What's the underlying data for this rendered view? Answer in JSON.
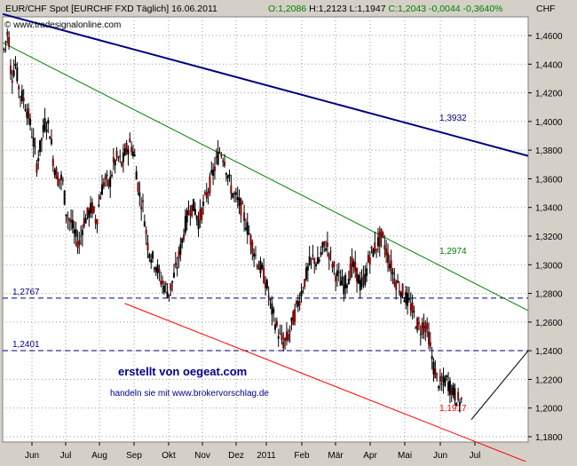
{
  "header": {
    "symbol": "EUR/CHF Spot [EURCHF FXD  Täglich] 16.06.2011",
    "open": "O:1,2086",
    "high": "H:1,2123",
    "low": "L:1,1947",
    "close": "C:1,2043",
    "change": "-0,0044",
    "change_pct": "-0,3640%",
    "copyright": "© www.tradesignalonline.com",
    "currency": "CHF"
  },
  "annotations": {
    "credit": "erstellt von oegeat.com",
    "note": "handeln sie mit www.brokervorschlag.de"
  },
  "chart_data": {
    "type": "candlestick",
    "ylim": [
      1.17,
      1.475
    ],
    "y_ticks": [
      "1,4600",
      "1,4400",
      "1,4200",
      "1,4000",
      "1,3800",
      "1,3600",
      "1,3400",
      "1,3200",
      "1,3000",
      "1,2800",
      "1,2600",
      "1,2400",
      "1,2200",
      "1,2000",
      "1,1800"
    ],
    "x_ticks": [
      "Jun",
      "Jul",
      "Aug",
      "Sep",
      "Okt",
      "Nov",
      "Dez",
      "2011",
      "Feb",
      "Mär",
      "Apr",
      "Mai",
      "Jun",
      "Jul"
    ],
    "grid": true,
    "price_path": [
      [
        1,
        1.45
      ],
      [
        4,
        1.465
      ],
      [
        6,
        1.43
      ],
      [
        9,
        1.44
      ],
      [
        12,
        1.42
      ],
      [
        15,
        1.415
      ],
      [
        18,
        1.405
      ],
      [
        21,
        1.39
      ],
      [
        24,
        1.37
      ],
      [
        27,
        1.385
      ],
      [
        30,
        1.4
      ],
      [
        33,
        1.395
      ],
      [
        36,
        1.37
      ],
      [
        39,
        1.36
      ],
      [
        42,
        1.36
      ],
      [
        45,
        1.335
      ],
      [
        48,
        1.33
      ],
      [
        51,
        1.32
      ],
      [
        54,
        1.315
      ],
      [
        57,
        1.33
      ],
      [
        60,
        1.335
      ],
      [
        63,
        1.34
      ],
      [
        66,
        1.33
      ],
      [
        69,
        1.35
      ],
      [
        72,
        1.36
      ],
      [
        75,
        1.355
      ],
      [
        78,
        1.37
      ],
      [
        81,
        1.375
      ],
      [
        84,
        1.37
      ],
      [
        87,
        1.38
      ],
      [
        90,
        1.385
      ],
      [
        93,
        1.375
      ],
      [
        96,
        1.35
      ],
      [
        99,
        1.34
      ],
      [
        102,
        1.315
      ],
      [
        105,
        1.305
      ],
      [
        108,
        1.3
      ],
      [
        111,
        1.29
      ],
      [
        114,
        1.285
      ],
      [
        117,
        1.28
      ],
      [
        120,
        1.29
      ],
      [
        123,
        1.3
      ],
      [
        126,
        1.315
      ],
      [
        129,
        1.33
      ],
      [
        132,
        1.34
      ],
      [
        135,
        1.34
      ],
      [
        138,
        1.33
      ],
      [
        141,
        1.34
      ],
      [
        144,
        1.35
      ],
      [
        147,
        1.36
      ],
      [
        150,
        1.37
      ],
      [
        153,
        1.38
      ],
      [
        156,
        1.375
      ],
      [
        159,
        1.36
      ],
      [
        162,
        1.35
      ],
      [
        165,
        1.345
      ],
      [
        168,
        1.34
      ],
      [
        171,
        1.33
      ],
      [
        174,
        1.32
      ],
      [
        177,
        1.31
      ],
      [
        180,
        1.3
      ],
      [
        183,
        1.295
      ],
      [
        186,
        1.285
      ],
      [
        189,
        1.27
      ],
      [
        192,
        1.26
      ],
      [
        195,
        1.25
      ],
      [
        198,
        1.245
      ],
      [
        201,
        1.25
      ],
      [
        204,
        1.26
      ],
      [
        207,
        1.27
      ],
      [
        210,
        1.28
      ],
      [
        213,
        1.29
      ],
      [
        216,
        1.3
      ],
      [
        219,
        1.305
      ],
      [
        222,
        1.3
      ],
      [
        225,
        1.31
      ],
      [
        228,
        1.315
      ],
      [
        231,
        1.305
      ],
      [
        234,
        1.295
      ],
      [
        237,
        1.29
      ],
      [
        240,
        1.285
      ],
      [
        243,
        1.29
      ],
      [
        246,
        1.3
      ],
      [
        249,
        1.295
      ],
      [
        252,
        1.285
      ],
      [
        255,
        1.29
      ],
      [
        258,
        1.305
      ],
      [
        261,
        1.31
      ],
      [
        264,
        1.315
      ],
      [
        267,
        1.32
      ],
      [
        270,
        1.31
      ],
      [
        273,
        1.3
      ],
      [
        276,
        1.29
      ],
      [
        279,
        1.285
      ],
      [
        282,
        1.28
      ],
      [
        285,
        1.275
      ],
      [
        288,
        1.27
      ],
      [
        291,
        1.26
      ],
      [
        294,
        1.255
      ],
      [
        297,
        1.26
      ],
      [
        300,
        1.25
      ],
      [
        303,
        1.23
      ],
      [
        306,
        1.22
      ],
      [
        309,
        1.215
      ],
      [
        312,
        1.22
      ],
      [
        315,
        1.215
      ],
      [
        318,
        1.21
      ],
      [
        321,
        1.205
      ],
      [
        324,
        1.205
      ]
    ],
    "lines": [
      {
        "label": "1,3932",
        "color": "#000080",
        "from": [
          0,
          1.475
        ],
        "to": [
          370,
          1.376
        ]
      },
      {
        "label": "1,2974",
        "color": "#008000",
        "from": [
          0,
          1.455
        ],
        "to": [
          370,
          1.268
        ]
      },
      {
        "label": "1,1917",
        "color": "#ff0000",
        "from": [
          86,
          1.273
        ],
        "to": [
          370,
          1.162
        ]
      },
      {
        "label": "",
        "color": "#000000",
        "from": [
          330,
          1.192
        ],
        "to": [
          370,
          1.24
        ]
      }
    ],
    "levels": [
      {
        "label": "1,2767",
        "value": 1.2767
      },
      {
        "label": "1,2401",
        "value": 1.2401
      }
    ]
  }
}
